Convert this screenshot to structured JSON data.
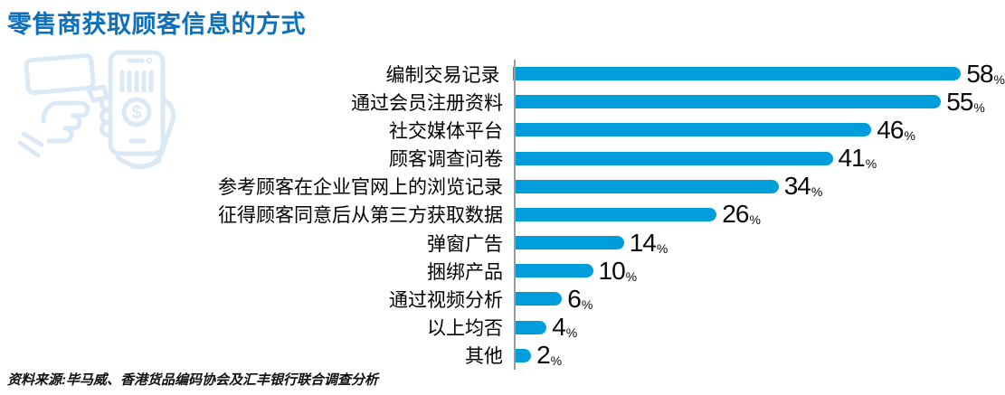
{
  "title": "零售商获取顾客信息的方式",
  "source": "资料来源:毕马威、香港货品编码协会及汇丰银行联合调查分析",
  "icon": {
    "name": "barcode-scanner-phone-icon",
    "color": "#dbe9f6"
  },
  "colors": {
    "title": "#0d70b8",
    "bar": "#009ddb",
    "axis": "#9b9b9b",
    "text": "#000000"
  },
  "chart_data": {
    "type": "bar",
    "orientation": "horizontal",
    "title": "零售商获取顾客信息的方式",
    "categories": [
      "编制交易记录",
      "通过会员注册资料",
      "社交媒体平台",
      "顾客调查问卷",
      "参考顾客在企业官网上的浏览记录",
      "征得顾客同意后从第三方获取数据",
      "弹窗广告",
      "捆绑产品",
      "通过视频分析",
      "以上均否",
      "其他"
    ],
    "values": [
      58,
      55,
      46,
      41,
      34,
      26,
      14,
      10,
      6,
      4,
      2
    ],
    "unit": "%",
    "xlim": [
      0,
      63
    ],
    "grid": false,
    "legend": false,
    "value_labels": "outside-end"
  }
}
